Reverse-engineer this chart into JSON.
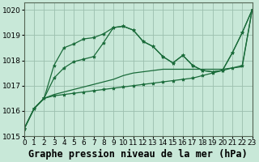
{
  "title": "Graphe pression niveau de la mer (hPa)",
  "background_color": "#c8e8d8",
  "grid_color": "#9bbfad",
  "line_color": "#1a6b3a",
  "xlim": [
    0,
    23
  ],
  "ylim": [
    1015.0,
    1020.3
  ],
  "yticks": [
    1015,
    1016,
    1017,
    1018,
    1019,
    1020
  ],
  "xticks": [
    0,
    1,
    2,
    3,
    4,
    5,
    6,
    7,
    8,
    9,
    10,
    11,
    12,
    13,
    14,
    15,
    16,
    17,
    18,
    19,
    20,
    21,
    22,
    23
  ],
  "series": [
    {
      "x": [
        0,
        1,
        2,
        3,
        4,
        5,
        6,
        7,
        8,
        9,
        10,
        11,
        12,
        13,
        14,
        15,
        16,
        17,
        18,
        19,
        20,
        21,
        22,
        23
      ],
      "y": [
        1015.3,
        1016.1,
        1016.5,
        1016.6,
        1016.65,
        1016.7,
        1016.75,
        1016.8,
        1016.85,
        1016.9,
        1016.95,
        1017.0,
        1017.05,
        1017.1,
        1017.15,
        1017.2,
        1017.25,
        1017.3,
        1017.4,
        1017.5,
        1017.6,
        1017.7,
        1017.8,
        1020.0
      ],
      "marker": true,
      "linewidth": 0.9
    },
    {
      "x": [
        0,
        1,
        2,
        3,
        4,
        5,
        6,
        7,
        8,
        9,
        10,
        11,
        12,
        13,
        14,
        15,
        16,
        17,
        18,
        19,
        20,
        21,
        22,
        23
      ],
      "y": [
        1015.3,
        1016.1,
        1016.5,
        1016.65,
        1016.75,
        1016.85,
        1016.95,
        1017.05,
        1017.15,
        1017.25,
        1017.4,
        1017.5,
        1017.55,
        1017.6,
        1017.65,
        1017.65,
        1017.65,
        1017.65,
        1017.65,
        1017.65,
        1017.65,
        1017.7,
        1017.75,
        1020.0
      ],
      "marker": false,
      "linewidth": 0.9
    },
    {
      "x": [
        0,
        1,
        2,
        3,
        4,
        5,
        6,
        7,
        8,
        9,
        10,
        11,
        12,
        13,
        14,
        15,
        16,
        17,
        18,
        19,
        20,
        21,
        22,
        23
      ],
      "y": [
        1015.3,
        1016.1,
        1016.5,
        1017.3,
        1017.7,
        1017.95,
        1018.05,
        1018.15,
        1018.7,
        1019.3,
        1019.35,
        1019.2,
        1018.75,
        1018.55,
        1018.15,
        1017.9,
        1018.2,
        1017.8,
        1017.6,
        1017.55,
        1017.6,
        1018.3,
        1019.1,
        1020.0
      ],
      "marker": true,
      "linewidth": 0.9
    },
    {
      "x": [
        0,
        1,
        2,
        3,
        4,
        5,
        6,
        7,
        8,
        9,
        10,
        11,
        12,
        13,
        14,
        15,
        16,
        17,
        18,
        19,
        20,
        21,
        22,
        23
      ],
      "y": [
        1015.3,
        1016.1,
        1016.5,
        1017.8,
        1018.5,
        1018.65,
        1018.85,
        1018.9,
        1019.05,
        1019.3,
        1019.35,
        1019.2,
        1018.75,
        1018.55,
        1018.15,
        1017.9,
        1018.2,
        1017.8,
        1017.6,
        1017.55,
        1017.6,
        1018.3,
        1019.1,
        1020.0
      ],
      "marker": true,
      "linewidth": 0.9
    }
  ],
  "title_fontsize": 8.5,
  "tick_fontsize": 6.5
}
